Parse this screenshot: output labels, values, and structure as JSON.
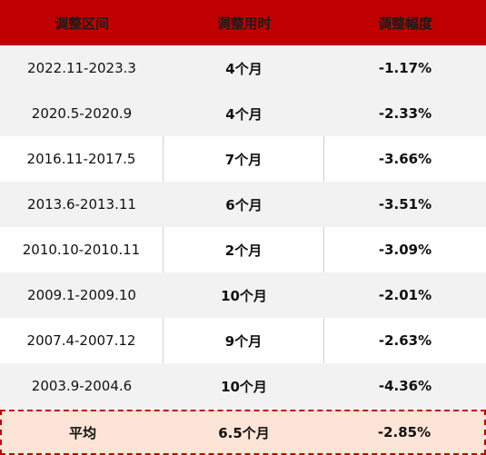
{
  "headers": [
    "调整区间",
    "调整用时",
    "调整幅度"
  ],
  "rows": [
    {
      "period": "2022.11-2023.3",
      "duration": "4个月",
      "change": "-1.17%"
    },
    {
      "period": "2020.5-2020.9",
      "duration": "4个月",
      "change": "-2.33%"
    },
    {
      "period": "2016.11-2017.5",
      "duration": "7个月",
      "change": "-3.66%"
    },
    {
      "period": "2013.6-2013.11",
      "duration": "6个月",
      "change": "-3.51%"
    },
    {
      "period": "2010.10-2010.11",
      "duration": "2个月",
      "change": "-3.09%"
    },
    {
      "period": "2009.1-2009.10",
      "duration": "10个月",
      "change": "-2.01%"
    },
    {
      "period": "2007.4-2007.12",
      "duration": "9个月",
      "change": "-2.63%"
    },
    {
      "period": "2003.9-2004.6",
      "duration": "10个月",
      "change": "-4.36%"
    }
  ],
  "average": {
    "label": "平均",
    "duration": "6.5个月",
    "change": "-2.85%"
  },
  "colors": {
    "header_bg": "#c00000",
    "average_bg": "#fce4d6",
    "stripe_bg": "#f2f2f2"
  }
}
